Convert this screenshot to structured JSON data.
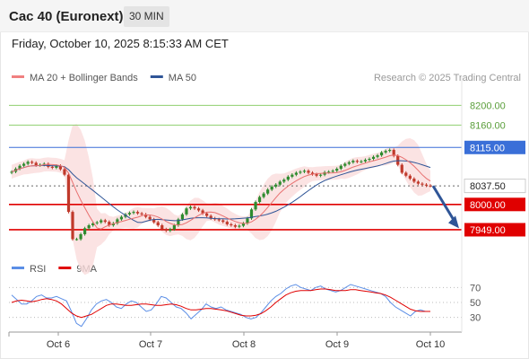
{
  "header": {
    "title": "Cac 40 (Euronext)",
    "interval": "30 MIN"
  },
  "datetime": "Friday, October 10, 2025 8:15:33 AM CET",
  "legend": {
    "main": [
      {
        "name": "MA 20 + Bollinger Bands",
        "color": "#f08080"
      },
      {
        "name": "MA 50",
        "color": "#2f5597"
      }
    ],
    "credit": "Research © 2025 Trading Central",
    "rsi": [
      {
        "name": "RSI",
        "color": "#5b8ee6"
      },
      {
        "name": "9MA",
        "color": "#e00000"
      }
    ]
  },
  "colors": {
    "up": "#2e8b2e",
    "down": "#c0392b",
    "bollinger": "#fadcdc",
    "ma20": "#e87070",
    "ma50": "#2f5597",
    "resistance": "#3a6fd8",
    "support": "#e00000",
    "target": "#8fcf6f",
    "arrow": "#2f5597"
  },
  "chart_data": {
    "type": "candlestick",
    "price_range": [
      7920,
      8235
    ],
    "levels": [
      {
        "label": "8200.00",
        "value": 8200,
        "kind": "target"
      },
      {
        "label": "8160.00",
        "value": 8160,
        "kind": "target"
      },
      {
        "label": "8115.00",
        "value": 8115,
        "kind": "resistance"
      },
      {
        "label": "8037.50",
        "value": 8037.5,
        "kind": "last"
      },
      {
        "label": "8000.00",
        "value": 8000,
        "kind": "support"
      },
      {
        "label": "7949.00",
        "value": 7949,
        "kind": "support"
      }
    ],
    "x_labels": [
      "Oct 6",
      "Oct 7",
      "Oct 8",
      "Oct 9",
      "Oct 10"
    ],
    "close_path": [
      8066,
      8072,
      8078,
      8082,
      8086,
      8084,
      8079,
      8080,
      8082,
      8076,
      8074,
      8078,
      8071,
      8060,
      7985,
      7930,
      7930,
      7940,
      7952,
      7958,
      7962,
      7964,
      7968,
      7965,
      7958,
      7962,
      7970,
      7975,
      7980,
      7983,
      7985,
      7982,
      7980,
      7975,
      7970,
      7964,
      7958,
      7950,
      7947,
      7950,
      7958,
      7970,
      7980,
      7992,
      7995,
      7992,
      7988,
      7982,
      7977,
      7972,
      7970,
      7968,
      7965,
      7960,
      7958,
      7955,
      7957,
      7962,
      7972,
      7990,
      8005,
      8015,
      8022,
      8030,
      8036,
      8040,
      8046,
      8050,
      8056,
      8060,
      8064,
      8066,
      8068,
      8064,
      8061,
      8058,
      8060,
      8065,
      8066,
      8068,
      8072,
      8078,
      8082,
      8085,
      8088,
      8086,
      8087,
      8090,
      8092,
      8096,
      8099,
      8105,
      8108,
      8110,
      8098,
      8080,
      8064,
      8058,
      8052,
      8046,
      8042,
      8040,
      8038,
      8037.5
    ],
    "rsi": {
      "levels": [
        70,
        50,
        30
      ],
      "rsi_path": [
        60,
        54,
        48,
        48,
        52,
        58,
        60,
        56,
        56,
        58,
        55,
        52,
        38,
        22,
        18,
        28,
        40,
        48,
        52,
        54,
        50,
        44,
        42,
        48,
        52,
        50,
        44,
        38,
        40,
        48,
        58,
        56,
        50,
        44,
        42,
        36,
        28,
        34,
        40,
        48,
        44,
        42,
        44,
        40,
        38,
        36,
        34,
        30,
        28,
        30,
        36,
        44,
        52,
        58,
        62,
        68,
        72,
        74,
        70,
        68,
        66,
        70,
        72,
        68,
        66,
        64,
        66,
        70,
        74,
        72,
        70,
        68,
        66,
        64,
        62,
        58,
        50,
        44,
        40,
        36,
        32,
        38,
        40,
        38,
        38
      ],
      "ma_path": [
        50,
        52,
        53,
        52,
        51,
        52,
        54,
        55,
        54,
        52,
        48,
        42,
        36,
        32,
        30,
        32,
        34,
        38,
        42,
        46,
        48,
        48,
        47,
        46,
        46,
        47,
        48,
        48,
        47,
        46,
        46,
        47,
        48,
        47,
        45,
        42,
        40,
        40,
        41,
        42,
        42,
        41,
        40,
        39,
        37,
        35,
        33,
        32,
        32,
        33,
        35,
        39,
        44,
        50,
        55,
        60,
        63,
        65,
        66,
        66,
        66,
        67,
        68,
        68,
        67,
        66,
        66,
        66,
        67,
        67,
        66,
        65,
        64,
        63,
        62,
        60,
        57,
        53,
        49,
        45,
        41,
        39,
        38,
        38,
        38
      ]
    }
  }
}
